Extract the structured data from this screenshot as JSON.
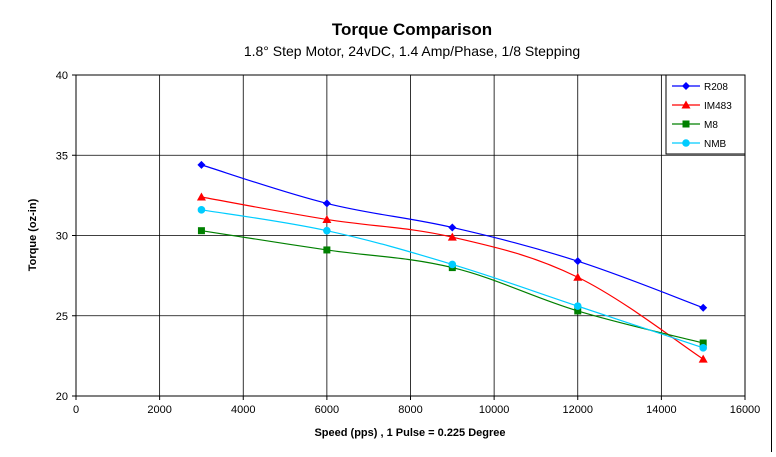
{
  "chart_data": {
    "type": "line",
    "title": "Torque Comparison",
    "subtitle": "1.8° Step Motor, 24vDC, 1.4 Amp/Phase, 1/8 Stepping",
    "xlabel": "Speed (pps) , 1 Pulse = 0.225 Degree",
    "ylabel": "Torque (oz-in)",
    "xlim": [
      0,
      16000
    ],
    "ylim": [
      20,
      40
    ],
    "x_ticks": [
      "0",
      "2000",
      "4000",
      "6000",
      "8000",
      "10000",
      "12000",
      "14000",
      "16000"
    ],
    "y_ticks": [
      "20",
      "25",
      "30",
      "35",
      "40"
    ],
    "grid": true,
    "legend_position": "top-right",
    "x": [
      3000,
      6000,
      9000,
      12000,
      15000
    ],
    "series": [
      {
        "name": "R208",
        "color": "#0000ff",
        "marker": "diamond",
        "values": [
          34.4,
          32.0,
          30.5,
          28.4,
          25.5
        ]
      },
      {
        "name": "IM483",
        "color": "#ff0000",
        "marker": "triangle",
        "values": [
          32.4,
          31.0,
          29.9,
          27.4,
          22.3
        ]
      },
      {
        "name": "M8",
        "color": "#008000",
        "marker": "square",
        "values": [
          30.3,
          29.1,
          28.0,
          25.3,
          23.3
        ]
      },
      {
        "name": "NMB",
        "color": "#00ccff",
        "marker": "circle",
        "values": [
          31.6,
          30.3,
          28.2,
          25.6,
          23.0
        ]
      }
    ]
  }
}
